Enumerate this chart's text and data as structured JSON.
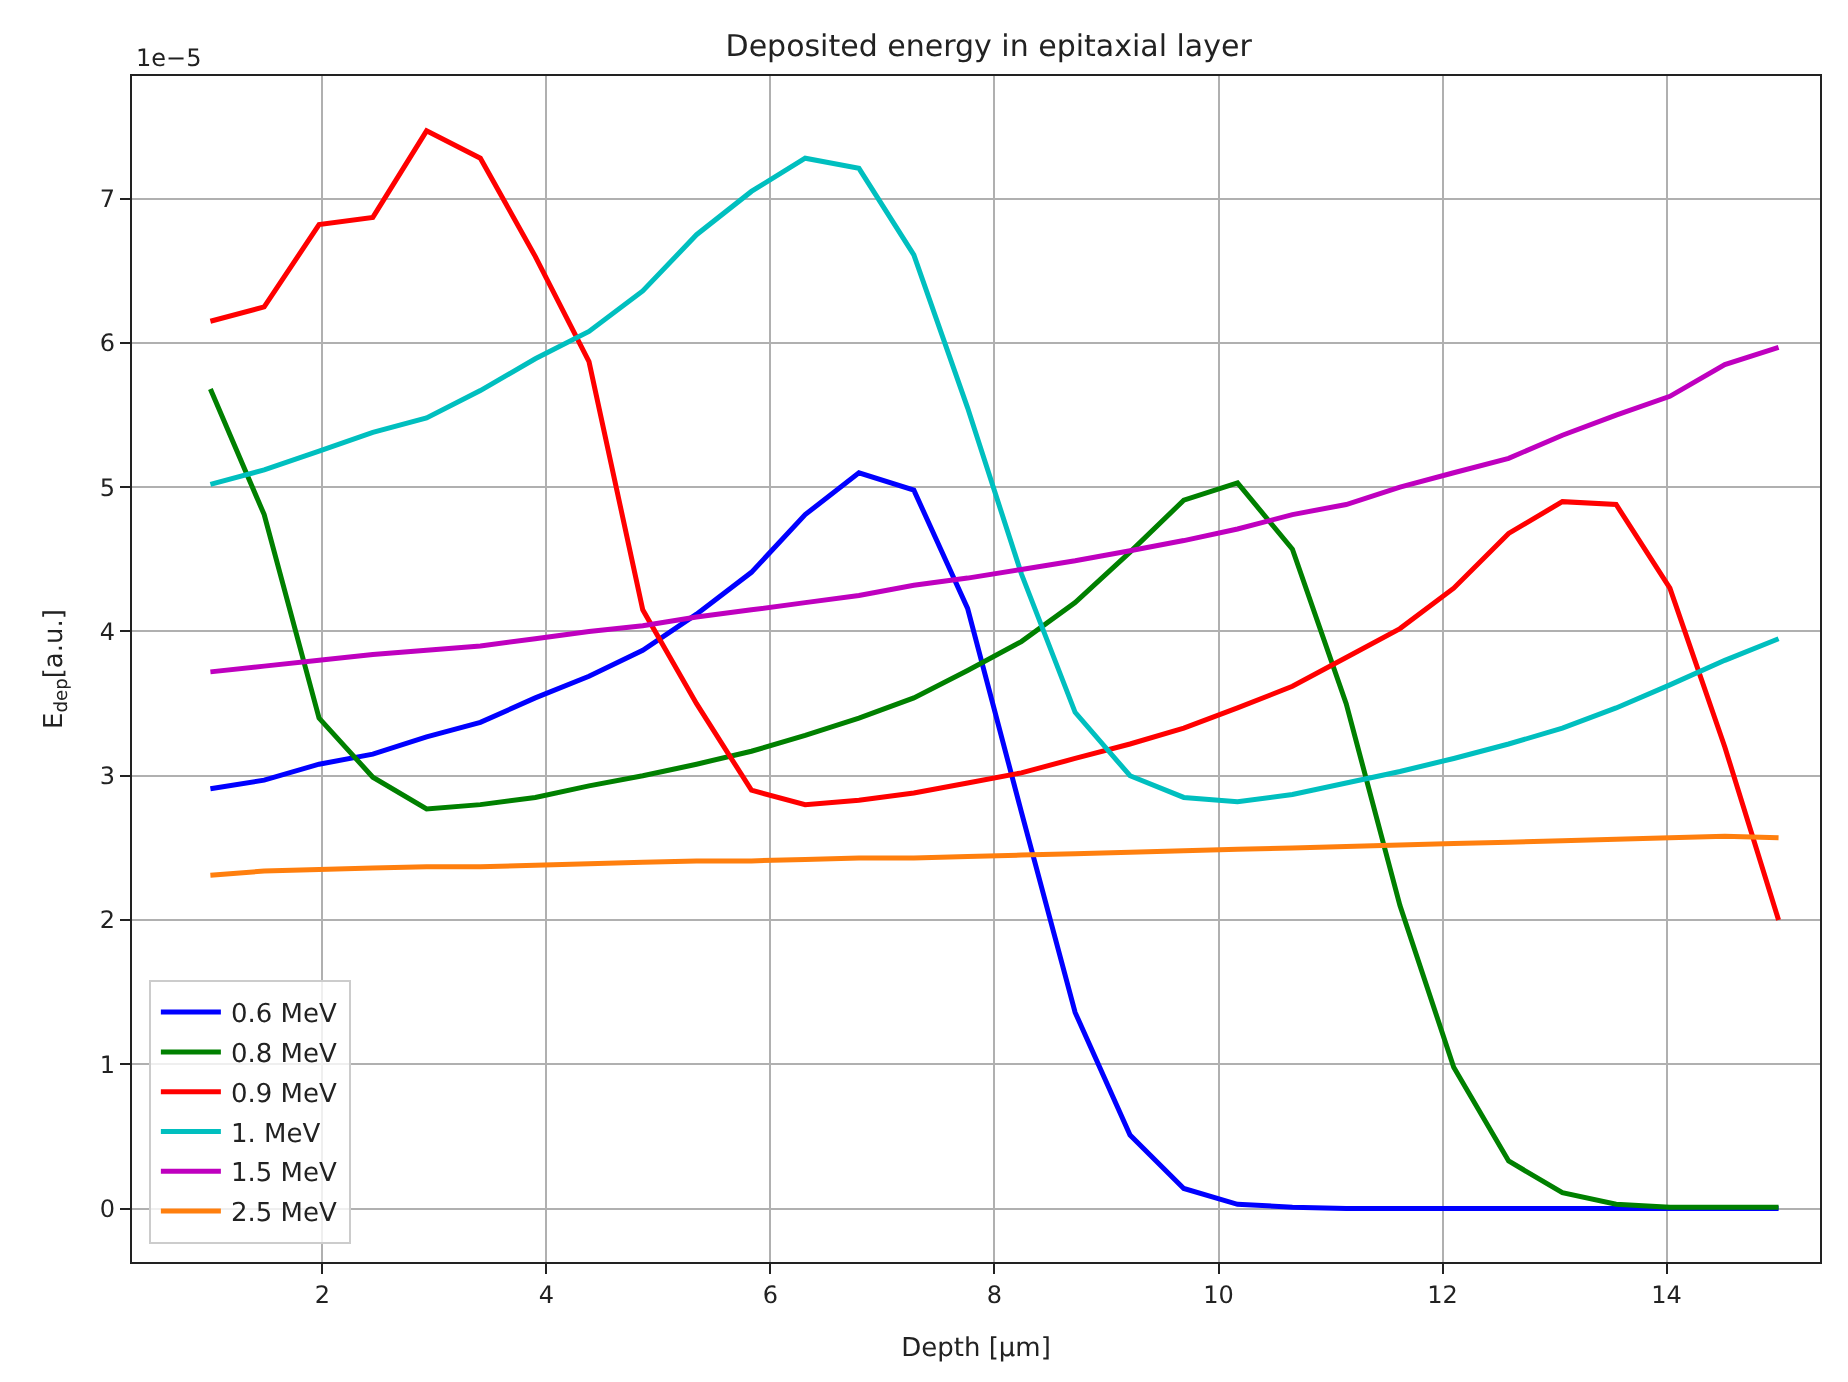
{
  "chart_data": {
    "type": "line",
    "title": "Deposited energy in epitaxial layer",
    "xlabel": "Depth [μm]",
    "ylabel": "E$_{dep}$[a.u.]",
    "annotations": [
      "1e−5"
    ],
    "x": [
      1,
      1.48,
      1.97,
      2.45,
      2.93,
      3.41,
      3.9,
      4.38,
      4.86,
      5.34,
      5.83,
      6.31,
      6.79,
      7.28,
      7.76,
      8.24,
      8.72,
      9.21,
      9.69,
      10.17,
      10.66,
      11.14,
      11.62,
      12.1,
      12.59,
      13.07,
      13.55,
      14.03,
      14.52,
      15
    ],
    "series": [
      {
        "name": "0.6 MeV",
        "color": "#0000ff",
        "values": [
          2.91,
          2.97,
          3.08,
          3.15,
          3.27,
          3.37,
          3.54,
          3.69,
          3.87,
          4.12,
          4.41,
          4.81,
          5.1,
          4.98,
          4.16,
          2.75,
          1.36,
          0.51,
          0.14,
          0.03,
          0.01,
          0,
          0,
          0,
          0,
          0,
          0,
          0,
          0,
          0
        ]
      },
      {
        "name": "0.8 MeV",
        "color": "#008000",
        "values": [
          5.68,
          4.81,
          3.4,
          2.99,
          2.77,
          2.8,
          2.85,
          2.93,
          3.0,
          3.08,
          3.17,
          3.28,
          3.4,
          3.54,
          3.73,
          3.93,
          4.2,
          4.55,
          4.91,
          5.03,
          4.57,
          3.5,
          2.1,
          0.98,
          0.33,
          0.11,
          0.03,
          0.01,
          0.01,
          0.01
        ]
      },
      {
        "name": "0.9 MeV",
        "color": "#ff0000",
        "values": [
          6.15,
          6.25,
          6.82,
          6.87,
          7.47,
          7.28,
          6.6,
          5.87,
          4.15,
          3.5,
          2.9,
          2.8,
          2.83,
          2.88,
          2.95,
          3.02,
          3.12,
          3.22,
          3.33,
          3.47,
          3.62,
          3.82,
          4.02,
          4.3,
          4.68,
          4.9,
          4.88,
          4.3,
          3.2,
          2.0
        ]
      },
      {
        "name": "1. MeV",
        "color": "#00bfbf",
        "values": [
          5.02,
          5.12,
          5.25,
          5.38,
          5.48,
          5.67,
          5.89,
          6.08,
          6.36,
          6.75,
          7.05,
          7.28,
          7.21,
          6.61,
          5.55,
          4.4,
          3.44,
          3.0,
          2.85,
          2.82,
          2.87,
          2.95,
          3.03,
          3.12,
          3.22,
          3.33,
          3.47,
          3.63,
          3.8,
          3.95
        ]
      },
      {
        "name": "1.5 MeV",
        "color": "#bf00bf",
        "values": [
          3.72,
          3.76,
          3.8,
          3.84,
          3.87,
          3.9,
          3.95,
          4.0,
          4.04,
          4.1,
          4.15,
          4.2,
          4.25,
          4.32,
          4.37,
          4.43,
          4.49,
          4.56,
          4.63,
          4.71,
          4.81,
          4.88,
          5.0,
          5.1,
          5.2,
          5.36,
          5.5,
          5.63,
          5.85,
          5.97
        ]
      },
      {
        "name": "2.5 MeV",
        "color": "#ff7f0e",
        "values": [
          2.31,
          2.34,
          2.35,
          2.36,
          2.37,
          2.37,
          2.38,
          2.39,
          2.4,
          2.41,
          2.41,
          2.42,
          2.43,
          2.43,
          2.44,
          2.45,
          2.46,
          2.47,
          2.48,
          2.49,
          2.5,
          2.51,
          2.52,
          2.53,
          2.54,
          2.55,
          2.56,
          2.57,
          2.58,
          2.57
        ]
      }
    ],
    "xlim": [
      0.3,
      15.37
    ],
    "ylim": [
      -0.37,
      7.85
    ],
    "xticks": [
      2,
      4,
      6,
      8,
      10,
      12,
      14
    ],
    "yticks": [
      0,
      1,
      2,
      3,
      4,
      5,
      6,
      7
    ],
    "grid": true,
    "legend": "bottom left",
    "marker": "none",
    "line_style": "solid"
  }
}
